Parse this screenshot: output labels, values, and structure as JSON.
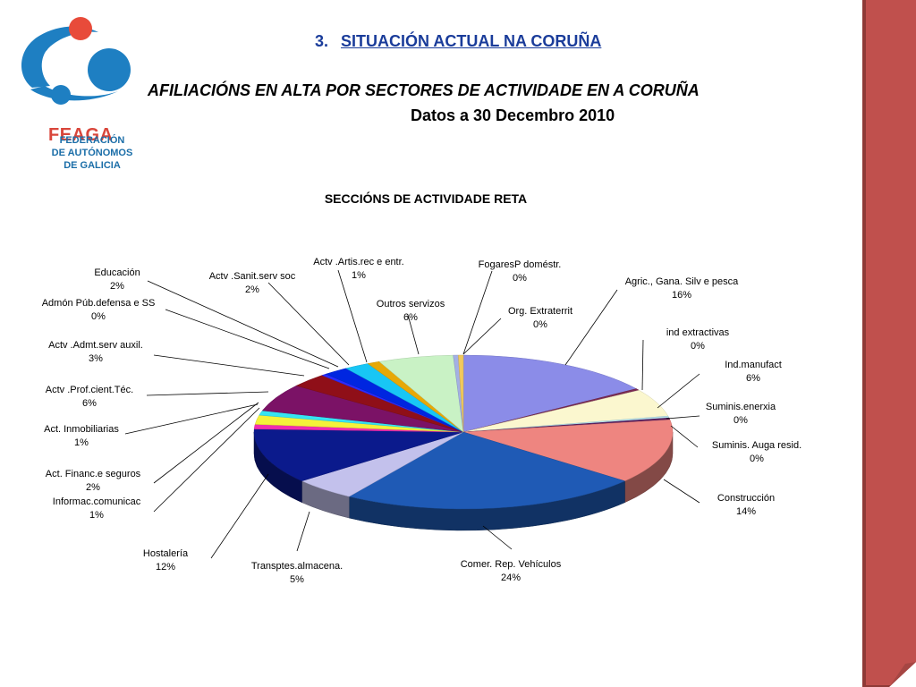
{
  "logo": {
    "name": "FEAGA",
    "sub_lines": [
      "FEDERACIÓN",
      "DE AUTÓNOMOS",
      "DE GALICIA"
    ]
  },
  "heading": {
    "number": "3.",
    "text": "SITUACIÓN ACTUAL  NA CORUÑA"
  },
  "title": "AFILIACIÓNS EN ALTA POR SECTORES DE ACTIVIDADE EN  A CORUÑA",
  "date_line": "Datos a 30  Decembro  2010",
  "colors": {
    "heading": "#1a3c9a",
    "side_bar": "#c0504d",
    "logo_red": "#e84b3a",
    "logo_blue": "#1e7fc2"
  },
  "chart_data": {
    "type": "pie",
    "title": "SECCIÓNS DE ACTIVIDADE RETA",
    "unit": "%",
    "slices": [
      {
        "label": "Agric., Gana. Silv e pesca",
        "value": 16,
        "value_label": "16%",
        "color": "#8b8ce8"
      },
      {
        "label": "ind extractivas",
        "value": 0,
        "value_label": "0%",
        "color": "#7a2a52"
      },
      {
        "label": "Ind.manufact",
        "value": 6,
        "value_label": "6%",
        "color": "#fbf7cf"
      },
      {
        "label": "Suminis.enerxia",
        "value": 0,
        "value_label": "0%",
        "color": "#b7e3ee"
      },
      {
        "label": "Suminis. Auga resid.",
        "value": 0,
        "value_label": "0%",
        "color": "#5b1f60"
      },
      {
        "label": "Construcción",
        "value": 14,
        "value_label": "14%",
        "color": "#ee8580"
      },
      {
        "label": "Comer. Rep. Vehículos",
        "value": 24,
        "value_label": "24%",
        "color": "#1f5ab5"
      },
      {
        "label": "Transptes.almacena.",
        "value": 5,
        "value_label": "5%",
        "color": "#c3c1ec"
      },
      {
        "label": "Hostalería",
        "value": 12,
        "value_label": "12%",
        "color": "#0b1a8c"
      },
      {
        "label": "Informac.comunicac",
        "value": 1,
        "value_label": "1%",
        "color": "#f02cb0"
      },
      {
        "label": "Act. Financ.e seguros",
        "value": 2,
        "value_label": "2%",
        "color": "#f4f23a"
      },
      {
        "label": "Act. Inmobiliarias",
        "value": 1,
        "value_label": "1%",
        "color": "#35e4f2"
      },
      {
        "label": "Actv .Prof.cient.Téc.",
        "value": 6,
        "value_label": "6%",
        "color": "#7b1266"
      },
      {
        "label": "Actv .Admt.serv auxil.",
        "value": 3,
        "value_label": "3%",
        "color": "#8f0f18"
      },
      {
        "label": "Admón Púb.defensa e SS",
        "value": 0,
        "value_label": "0%",
        "color": "#2b2bff"
      },
      {
        "label": "Educación",
        "value": 2,
        "value_label": "2%",
        "color": "#0026e0"
      },
      {
        "label": "Actv .Sanit.serv soc",
        "value": 2,
        "value_label": "2%",
        "color": "#18c6f5"
      },
      {
        "label": "Actv .Artis.rec e entr.",
        "value": 1,
        "value_label": "1%",
        "color": "#e7a807"
      },
      {
        "label": "Outros servizos",
        "value": 6,
        "value_label": "6%",
        "color": "#c9f2c5"
      },
      {
        "label": "FogaresP doméstr.",
        "value": 0,
        "value_label": "0%",
        "color": "#a3b0e4"
      },
      {
        "label": "Org. Extraterrit",
        "value": 0,
        "value_label": "0%",
        "color": "#f1c95d"
      }
    ]
  }
}
